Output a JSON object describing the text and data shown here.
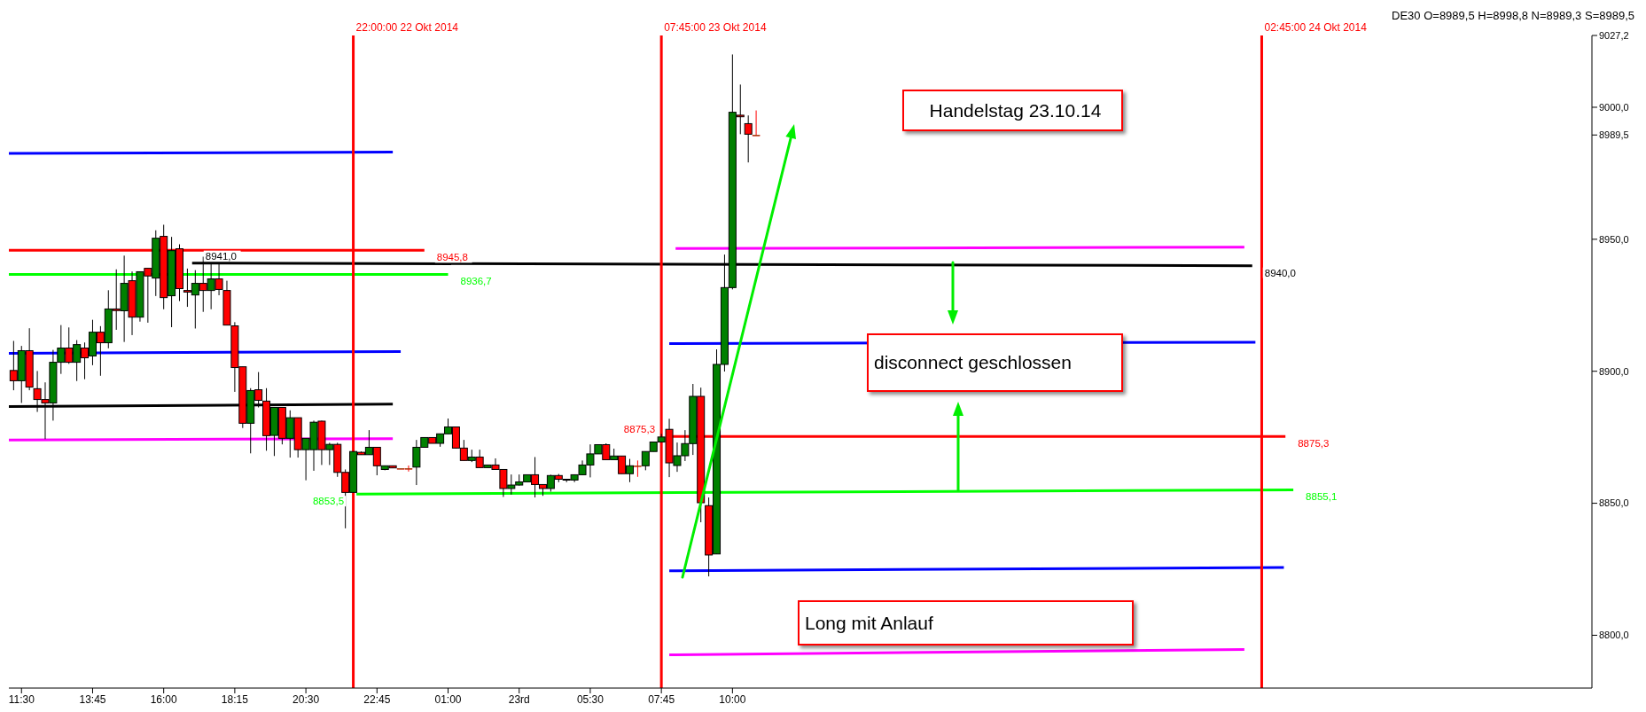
{
  "chart_data": {
    "type": "candlestick",
    "title": "DE30 O=8989,5 H=8998,8 N=8989,3 S=8989,5",
    "x": [
      "2014-10-22T11:15",
      "2014-10-22T11:30",
      "2014-10-22T11:45",
      "2014-10-22T12:00",
      "2014-10-22T12:15",
      "2014-10-22T12:30",
      "2014-10-22T12:45",
      "2014-10-22T13:00",
      "2014-10-22T13:15",
      "2014-10-22T13:30",
      "2014-10-22T13:45",
      "2014-10-22T14:00",
      "2014-10-22T14:15",
      "2014-10-22T14:30",
      "2014-10-22T14:45",
      "2014-10-22T15:00",
      "2014-10-22T15:15",
      "2014-10-22T15:30",
      "2014-10-22T15:45",
      "2014-10-22T16:00",
      "2014-10-22T16:15",
      "2014-10-22T16:30",
      "2014-10-22T16:45",
      "2014-10-22T17:00",
      "2014-10-22T17:15",
      "2014-10-22T17:30",
      "2014-10-22T17:45",
      "2014-10-22T18:00",
      "2014-10-22T18:15",
      "2014-10-22T18:30",
      "2014-10-22T18:45",
      "2014-10-22T19:00",
      "2014-10-22T19:15",
      "2014-10-22T19:30",
      "2014-10-22T19:45",
      "2014-10-22T20:00",
      "2014-10-22T20:15",
      "2014-10-22T20:30",
      "2014-10-22T20:45",
      "2014-10-22T21:00",
      "2014-10-22T21:15",
      "2014-10-22T21:30",
      "2014-10-22T21:45",
      "2014-10-22T22:00",
      "2014-10-22T22:15",
      "2014-10-22T22:30",
      "2014-10-22T22:45",
      "2014-10-22T23:00",
      "2014-10-22T23:15",
      "2014-10-22T23:30",
      "2014-10-22T23:45",
      "2014-10-23T00:00",
      "2014-10-23T00:15",
      "2014-10-23T00:30",
      "2014-10-23T00:45",
      "2014-10-23T01:00",
      "2014-10-23T01:15",
      "2014-10-23T01:30",
      "2014-10-23T01:45",
      "2014-10-23T02:00",
      "2014-10-23T02:15",
      "2014-10-23T02:30",
      "2014-10-23T02:45",
      "2014-10-23T03:00",
      "2014-10-23T03:15",
      "2014-10-23T03:30",
      "2014-10-23T03:45",
      "2014-10-23T04:00",
      "2014-10-23T04:15",
      "2014-10-23T04:30",
      "2014-10-23T04:45",
      "2014-10-23T05:00",
      "2014-10-23T05:15",
      "2014-10-23T05:30",
      "2014-10-23T05:45",
      "2014-10-23T06:00",
      "2014-10-23T06:15",
      "2014-10-23T06:30",
      "2014-10-23T06:45",
      "2014-10-23T07:00",
      "2014-10-23T07:15",
      "2014-10-23T07:30",
      "2014-10-23T07:45",
      "2014-10-23T08:00",
      "2014-10-23T08:15",
      "2014-10-23T08:30",
      "2014-10-23T08:45",
      "2014-10-23T09:00",
      "2014-10-23T09:15",
      "2014-10-23T09:30",
      "2014-10-23T09:45",
      "2014-10-23T10:00",
      "2014-10-23T10:15",
      "2014-10-23T10:30",
      "2014-10-23T10:45"
    ],
    "ohlc": [
      [
        8900.3,
        8911.5,
        8892.8,
        8896.4
      ],
      [
        8896.4,
        8909.6,
        8888.0,
        8907.8
      ],
      [
        8907.8,
        8916.3,
        8892.8,
        8894.0
      ],
      [
        8893.4,
        8900.1,
        8884.6,
        8889.3
      ],
      [
        8889.3,
        8895.8,
        8874.3,
        8888.0
      ],
      [
        8888.0,
        8908.1,
        8881.3,
        8903.4
      ],
      [
        8903.4,
        8917.5,
        8899.0,
        8908.8
      ],
      [
        8908.8,
        8916.6,
        8902.8,
        8903.4
      ],
      [
        8903.4,
        8911.8,
        8896.3,
        8910.1
      ],
      [
        8908.8,
        8910.9,
        8897.0,
        8905.1
      ],
      [
        8905.8,
        8919.5,
        8902.3,
        8914.8
      ],
      [
        8914.8,
        8917.1,
        8898.3,
        8910.8
      ],
      [
        8910.8,
        8930.7,
        8908.7,
        8923.6
      ],
      [
        8923.6,
        8938.6,
        8915.7,
        8923.0
      ],
      [
        8922.9,
        8943.8,
        8911.1,
        8933.3
      ],
      [
        8934.3,
        8937.8,
        8913.7,
        8920.5
      ],
      [
        8920.5,
        8937.7,
        8918.8,
        8937.7
      ],
      [
        8939.0,
        8939.0,
        8918.4,
        8936.1
      ],
      [
        8935.3,
        8953.4,
        8928.5,
        8950.4
      ],
      [
        8951.1,
        8955.5,
        8923.5,
        8927.9
      ],
      [
        8928.6,
        8950.9,
        8916.7,
        8945.7
      ],
      [
        8946.4,
        8948.1,
        8926.6,
        8931.3
      ],
      [
        8930.6,
        8938.9,
        8924.4,
        8930.0
      ],
      [
        8928.9,
        8938.3,
        8916.2,
        8933.3
      ],
      [
        8933.3,
        8943.4,
        8922.5,
        8930.6
      ],
      [
        8930.6,
        8940.6,
        8923.5,
        8935.0
      ],
      [
        8935.0,
        8940.6,
        8928.8,
        8931.0
      ],
      [
        8930.6,
        8934.3,
        8917.5,
        8917.5
      ],
      [
        8917.2,
        8918.6,
        8892.2,
        8901.4
      ],
      [
        8901.7,
        8901.7,
        8878.5,
        8880.3
      ],
      [
        8880.3,
        8893.6,
        8868.9,
        8892.7
      ],
      [
        8893.0,
        8899.7,
        8886.3,
        8889.0
      ],
      [
        8888.7,
        8893.6,
        8869.9,
        8875.6
      ],
      [
        8875.7,
        8886.3,
        8867.9,
        8886.3
      ],
      [
        8886.3,
        8886.3,
        8872.3,
        8874.6
      ],
      [
        8874.6,
        8885.2,
        8867.3,
        8882.4
      ],
      [
        8882.4,
        8882.4,
        8867.3,
        8870.3
      ],
      [
        8870.3,
        8874.6,
        8858.7,
        8874.6
      ],
      [
        8870.3,
        8881.3,
        8862.3,
        8880.7
      ],
      [
        8881.1,
        8881.3,
        8864.5,
        8870.3
      ],
      [
        8870.3,
        8872.9,
        8864.5,
        8872.3
      ],
      [
        8872.3,
        8872.9,
        8860.0,
        8861.7
      ],
      [
        8861.7,
        8862.8,
        8840.5,
        8854.1
      ],
      [
        8854.1,
        8869.6,
        8854.1,
        8869.6
      ],
      [
        8869.3,
        8869.6,
        8868.4,
        8868.4
      ],
      [
        8868.4,
        8877.7,
        8868.4,
        8871.2
      ],
      [
        8871.2,
        8871.2,
        8860.6,
        8864.2
      ],
      [
        8862.8,
        8864.2,
        8862.5,
        8864.2
      ],
      [
        8864.2,
        8864.2,
        8863.4,
        8863.4
      ],
      [
        8863.2,
        8863.2,
        8863.2,
        8863.2
      ],
      [
        8863.2,
        8864.3,
        8862.0,
        8863.2
      ],
      [
        8863.7,
        8874.0,
        8856.9,
        8871.2
      ],
      [
        8871.2,
        8874.9,
        8871.2,
        8874.9
      ],
      [
        8874.9,
        8874.9,
        8872.7,
        8872.7
      ],
      [
        8872.7,
        8876.3,
        8871.4,
        8876.3
      ],
      [
        8876.3,
        8882.1,
        8876.3,
        8878.9
      ],
      [
        8878.9,
        8878.9,
        8870.7,
        8870.9
      ],
      [
        8870.9,
        8874.0,
        8866.2,
        8866.2
      ],
      [
        8866.2,
        8870.3,
        8865.6,
        8867.5
      ],
      [
        8867.5,
        8870.3,
        8863.5,
        8863.5
      ],
      [
        8863.5,
        8864.5,
        8863.5,
        8864.5
      ],
      [
        8864.5,
        8867.0,
        8862.8,
        8862.8
      ],
      [
        8862.8,
        8862.8,
        8852.4,
        8855.6
      ],
      [
        8855.6,
        8860.9,
        8853.3,
        8856.9
      ],
      [
        8856.9,
        8860.9,
        8856.7,
        8858.1
      ],
      [
        8858.1,
        8860.8,
        8858.1,
        8860.8
      ],
      [
        8860.8,
        8867.5,
        8852.2,
        8857.1
      ],
      [
        8857.1,
        8857.1,
        8852.8,
        8855.6
      ],
      [
        8855.6,
        8860.8,
        8854.4,
        8860.5
      ],
      [
        8860.5,
        8861.1,
        8858.0,
        8859.1
      ],
      [
        8859.1,
        8859.1,
        8858.0,
        8858.8
      ],
      [
        8858.8,
        8860.8,
        8858.0,
        8860.8
      ],
      [
        8860.8,
        8866.2,
        8860.6,
        8864.5
      ],
      [
        8864.5,
        8872.3,
        8859.8,
        8868.7
      ],
      [
        8868.7,
        8872.2,
        8868.7,
        8872.2
      ],
      [
        8872.2,
        8872.7,
        8866.5,
        8866.5
      ],
      [
        8866.5,
        8870.7,
        8866.5,
        8867.9
      ],
      [
        8867.9,
        8867.9,
        8861.2,
        8861.2
      ],
      [
        8861.2,
        8866.8,
        8858.0,
        8864.2
      ],
      [
        8864.2,
        8866.2,
        8860.0,
        8864.2
      ],
      [
        8864.2,
        8869.6,
        8862.5,
        8869.6
      ],
      [
        8869.6,
        8873.2,
        8869.6,
        8873.2
      ],
      [
        8873.2,
        8876.3,
        8873.2,
        8875.1
      ],
      [
        8878.0,
        8882.0,
        8859.9,
        8865.3
      ],
      [
        8864.3,
        8873.0,
        8861.9,
        8868.0
      ],
      [
        8868.0,
        8877.7,
        8866.0,
        8872.6
      ],
      [
        8872.6,
        8895.2,
        8868.3,
        8890.5
      ],
      [
        8890.5,
        8893.8,
        8842.8,
        8850.2
      ],
      [
        8849.1,
        8852.2,
        8822.3,
        8830.4
      ],
      [
        8830.8,
        8908.3,
        8830.8,
        8902.6
      ],
      [
        8902.6,
        8944.2,
        8899.9,
        8931.7
      ],
      [
        8931.7,
        9020.0,
        8931.0,
        8998.1
      ],
      [
        8997.0,
        9008.6,
        8989.8,
        8996.4
      ],
      [
        8993.8,
        8996.9,
        8979.1,
        8989.8
      ],
      [
        8989.5,
        8998.8,
        8989.3,
        8989.5
      ]
    ],
    "series": [
      {
        "type": "line",
        "color": "#0000ff",
        "x": [
          "2014-10-22T11:06",
          "2014-10-22T23:15"
        ],
        "values": [
          8982.5,
          8983
        ]
      },
      {
        "type": "line",
        "color": "#ff0000",
        "x": [
          "2014-10-22T11:06",
          "2014-10-23T00:15"
        ],
        "values": [
          8945.8,
          8945.8
        ],
        "value_labels": [
          null,
          "8945,8"
        ]
      },
      {
        "type": "line",
        "color": "#00ff00",
        "x": [
          "2014-10-22T11:06",
          "2014-10-23T01:00"
        ],
        "values": [
          8936.7,
          8936.7
        ],
        "value_labels": [
          null,
          "8936,7"
        ]
      },
      {
        "type": "line",
        "color": "#000000",
        "x": [
          "2014-10-22T16:54",
          "2014-10-24T02:27"
        ],
        "values": [
          8941,
          8940
        ],
        "value_labels": [
          "8941,0",
          "8940,0"
        ]
      },
      {
        "type": "line",
        "color": "#0000ff",
        "x": [
          "2014-10-22T11:06",
          "2014-10-22T23:30"
        ],
        "values": [
          8906.8,
          8907.5
        ]
      },
      {
        "type": "line",
        "color": "#000000",
        "x": [
          "2014-10-22T11:06",
          "2014-10-22T23:15"
        ],
        "values": [
          8886.6,
          8887.6
        ]
      },
      {
        "type": "line",
        "color": "#ff00ff",
        "x": [
          "2014-10-22T11:06",
          "2014-10-22T23:15"
        ],
        "values": [
          8874,
          8874.5
        ]
      },
      {
        "type": "line",
        "color": "#00ff00",
        "x": [
          "2014-10-22T22:06",
          "2014-10-24T03:45"
        ],
        "values": [
          8853.5,
          8855.1
        ],
        "value_labels": [
          "8853,5",
          "8855,1"
        ]
      },
      {
        "type": "line",
        "color": "#ff0000",
        "x": [
          "2014-10-23T08:00",
          "2014-10-24T03:30"
        ],
        "values": [
          8875.3,
          8875.3
        ],
        "value_labels": [
          "8875,3",
          "8875,3"
        ]
      },
      {
        "type": "line",
        "color": "#ff00ff",
        "x": [
          "2014-10-23T08:12",
          "2014-10-24T02:12"
        ],
        "values": [
          8946.5,
          8947
        ]
      },
      {
        "type": "line",
        "color": "#0000ff",
        "x": [
          "2014-10-23T08:00",
          "2014-10-24T02:33"
        ],
        "values": [
          8910.5,
          8911
        ]
      },
      {
        "type": "line",
        "color": "#0000ff",
        "x": [
          "2014-10-23T08:00",
          "2014-10-24T03:27"
        ],
        "values": [
          8824.4,
          8825.7
        ]
      },
      {
        "type": "line",
        "color": "#ff00ff",
        "x": [
          "2014-10-23T08:00",
          "2014-10-24T02:12"
        ],
        "values": [
          8792.6,
          8794.6
        ]
      }
    ],
    "ref_lines": [
      {
        "axis": "x",
        "value": "2014-10-22T22:00",
        "label": "22:00:00 22 Okt 2014",
        "color": "#ff0000"
      },
      {
        "axis": "x",
        "value": "2014-10-23T07:45",
        "label": "07:45:00 23 Okt 2014",
        "color": "#ff0000"
      },
      {
        "axis": "x",
        "value": "2014-10-24T02:45",
        "label": "02:45:00 24 Okt 2014",
        "color": "#ff0000"
      }
    ],
    "annotations": [
      "Handelstag 23.10.14",
      "disconnect geschlossen",
      "Long mit Anlauf"
    ],
    "xlim": [
      "2014-10-22T11:06",
      "2014-10-24T13:12"
    ],
    "xticks": [
      {
        "value": "2014-10-22T11:30",
        "label": "11:30"
      },
      {
        "value": "2014-10-22T13:45",
        "label": "13:45"
      },
      {
        "value": "2014-10-22T16:00",
        "label": "16:00"
      },
      {
        "value": "2014-10-22T18:15",
        "label": "18:15"
      },
      {
        "value": "2014-10-22T20:30",
        "label": "20:30"
      },
      {
        "value": "2014-10-22T22:45",
        "label": "22:45"
      },
      {
        "value": "2014-10-23T01:00",
        "label": "01:00"
      },
      {
        "value": "2014-10-23T03:15",
        "label": "23rd"
      },
      {
        "value": "2014-10-23T05:30",
        "label": "05:30"
      },
      {
        "value": "2014-10-23T07:45",
        "label": "07:45"
      },
      {
        "value": "2014-10-23T10:00",
        "label": "10:00"
      }
    ],
    "ylim": [
      8780,
      9027.2
    ],
    "yticks": [
      {
        "value": 8800,
        "label": "8800,0"
      },
      {
        "value": 8850,
        "label": "8850,0"
      },
      {
        "value": 8900,
        "label": "8900,0"
      },
      {
        "value": 8950,
        "label": "8950,0"
      },
      {
        "value": 8989.5,
        "label": "8989,5"
      },
      {
        "value": 9000,
        "label": "9000,0"
      },
      {
        "value": 9027.2,
        "label": "9027,2"
      }
    ]
  }
}
